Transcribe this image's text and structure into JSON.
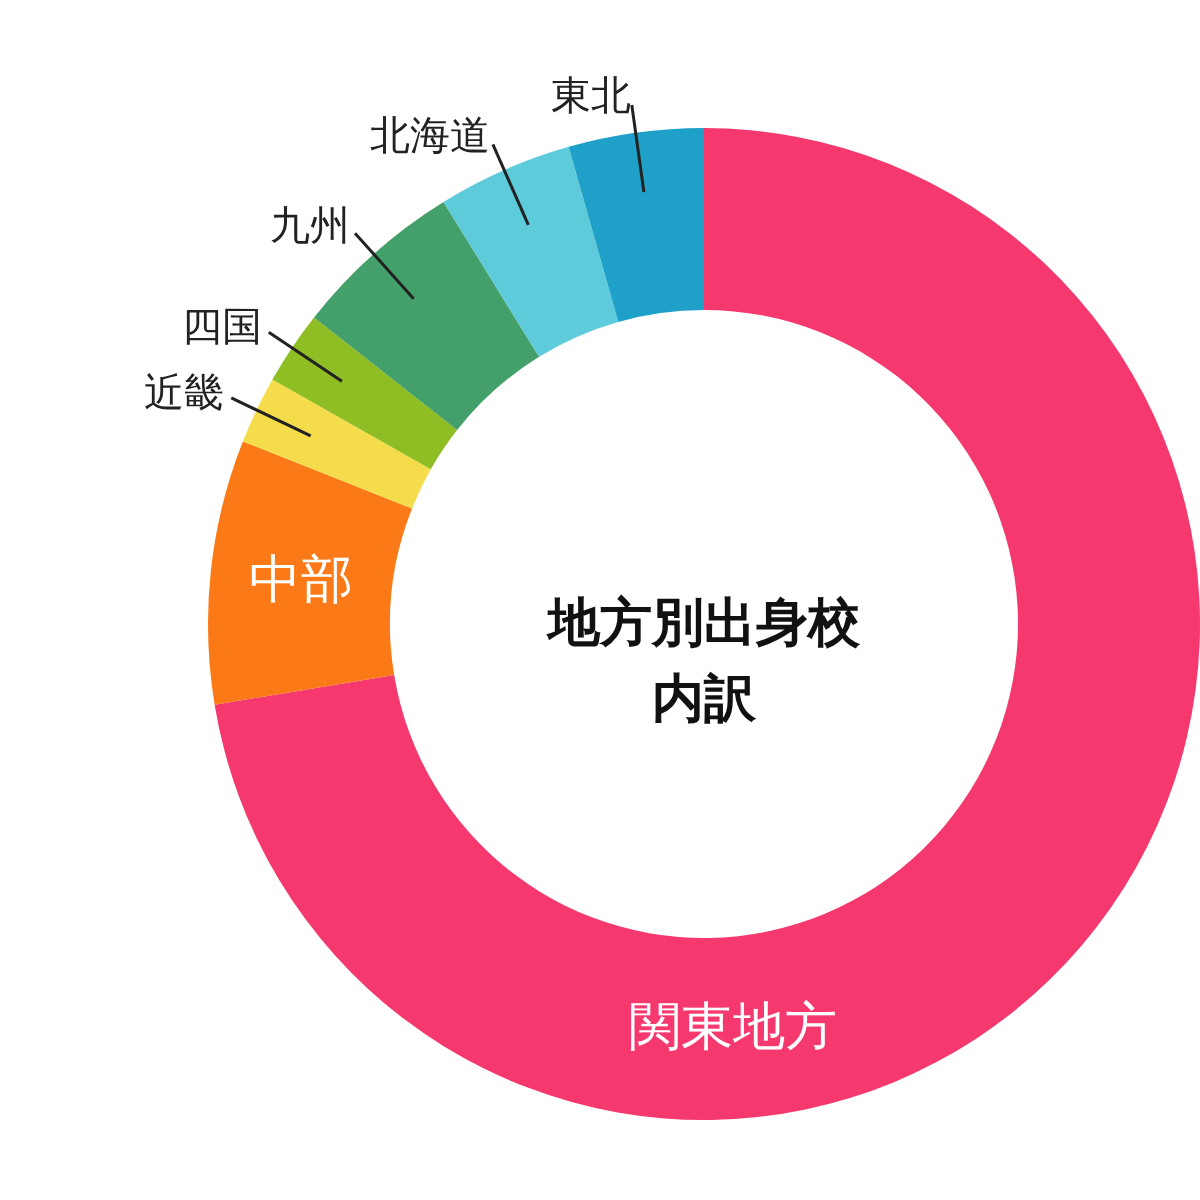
{
  "chart_data": {
    "type": "donut",
    "title": "地方別出身校内訳",
    "categories": [
      "関東地方",
      "中部",
      "近畿",
      "四国",
      "九州",
      "北海道",
      "東北"
    ],
    "values": [
      72.4,
      8.6,
      2.2,
      2.4,
      5.6,
      4.4,
      4.4
    ],
    "colors": [
      "#f5396f",
      "#fb7a17",
      "#f4dc4a",
      "#8fbd24",
      "#44a06a",
      "#5ecbdb",
      "#1fa0c9"
    ]
  }
}
